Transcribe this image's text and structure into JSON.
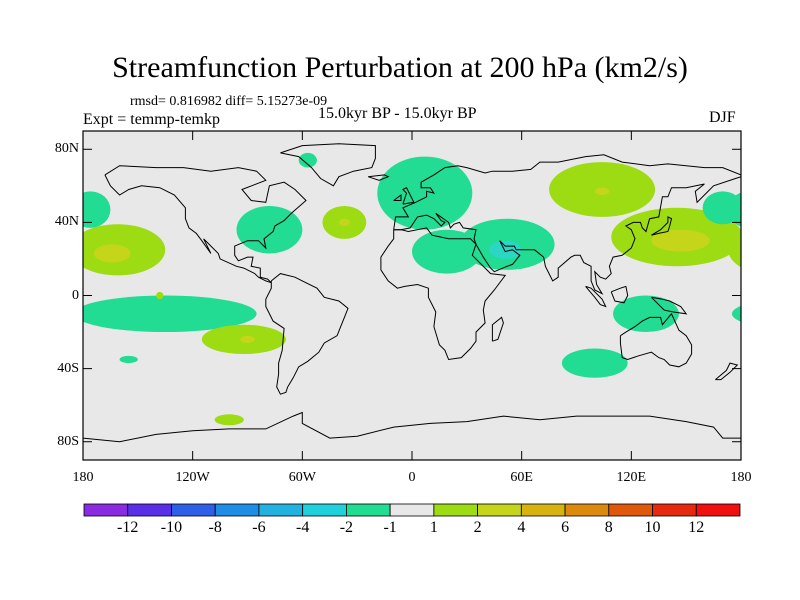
{
  "title": "Streamfunction Perturbation at 200 hPa (km2/s)",
  "stats": "rmsd= 0.816982 diff= 5.15273e-09",
  "experiment": "Expt = temmp-temkp",
  "period": "15.0kyr BP - 15.0kyr BP",
  "season": "DJF",
  "colors": {
    "background": "#e8e8e8",
    "neg_1": "#21dc92",
    "neg_2": "#2ad6c4",
    "pos_1": "#9ddb13",
    "pos_2": "#c5d51a",
    "pos_3": "#d7b310",
    "coast": "#000000"
  },
  "chart_data": {
    "type": "filled-contour-map",
    "projection": "cylindrical-equidistant",
    "lon_range": [
      -180,
      180
    ],
    "lat_range": [
      -90,
      90
    ],
    "y_ticks": [
      {
        "lat": 80,
        "label": "80N"
      },
      {
        "lat": 40,
        "label": "40N"
      },
      {
        "lat": 0,
        "label": "0"
      },
      {
        "lat": -40,
        "label": "40S"
      },
      {
        "lat": -80,
        "label": "80S"
      }
    ],
    "x_ticks": [
      {
        "lon": -180,
        "label": "180"
      },
      {
        "lon": -120,
        "label": "120W"
      },
      {
        "lon": -60,
        "label": "60W"
      },
      {
        "lon": 0,
        "label": "0"
      },
      {
        "lon": 60,
        "label": "60E"
      },
      {
        "lon": 120,
        "label": "120E"
      },
      {
        "lon": 180,
        "label": "180"
      }
    ],
    "colorbar": {
      "levels": [
        "-12",
        "-10",
        "-8",
        "-6",
        "-4",
        "-2",
        "-1",
        "1",
        "2",
        "4",
        "6",
        "8",
        "10",
        "12"
      ],
      "colors": [
        "#8a2be2",
        "#5a2fe8",
        "#2f5fe8",
        "#1f8de6",
        "#21b2e0",
        "#20d0da",
        "#21dc92",
        "#e8e8e8",
        "#9ddb13",
        "#c5d51a",
        "#d7b310",
        "#dc8a0c",
        "#e0580c",
        "#e62a10",
        "#f01010"
      ]
    },
    "regions": [
      {
        "name": "n-pacific-west-dipole-neg",
        "sign": "negative",
        "value": -1.5,
        "lon": -176,
        "lat": 47,
        "rlon": 11,
        "rlat": 10
      },
      {
        "name": "ne-pacific-pos",
        "sign": "positive",
        "value": 1.5,
        "lon": -161,
        "lat": 25,
        "rlon": 26,
        "rlat": 14
      },
      {
        "name": "ne-pacific-pos-core",
        "sign": "positive",
        "value": 2.5,
        "lon": -164,
        "lat": 23,
        "rlon": 10,
        "rlat": 5
      },
      {
        "name": "north-america-east-neg",
        "sign": "negative",
        "value": -1.5,
        "lon": -78,
        "lat": 36,
        "rlon": 18,
        "rlat": 13
      },
      {
        "name": "north-atlantic-pos",
        "sign": "positive",
        "value": 1.5,
        "lon": -37,
        "lat": 40,
        "rlon": 12,
        "rlat": 9
      },
      {
        "name": "north-atlantic-pos-core",
        "sign": "positive",
        "value": 2.5,
        "lon": -37,
        "lat": 40,
        "rlon": 3,
        "rlat": 2
      },
      {
        "name": "greenland-neg",
        "sign": "negative",
        "value": -1.5,
        "lon": -57,
        "lat": 74,
        "rlon": 5,
        "rlat": 4
      },
      {
        "name": "europe-neg",
        "sign": "negative",
        "value": -1.5,
        "lon": 7,
        "lat": 56,
        "rlon": 26,
        "rlat": 20
      },
      {
        "name": "middle-east-neg",
        "sign": "negative",
        "value": -1.5,
        "lon": 19,
        "lat": 24,
        "rlon": 19,
        "rlat": 12
      },
      {
        "name": "siberia-pos",
        "sign": "positive",
        "value": 1.5,
        "lon": 104,
        "lat": 58,
        "rlon": 29,
        "rlat": 15
      },
      {
        "name": "siberia-pos-core",
        "sign": "positive",
        "value": 2.5,
        "lon": 104,
        "lat": 57,
        "rlon": 4,
        "rlat": 2
      },
      {
        "name": "arabia-neg",
        "sign": "negative",
        "value": -1.5,
        "lon": 52,
        "lat": 28,
        "rlon": 26,
        "rlat": 14
      },
      {
        "name": "arabia-neg-core",
        "sign": "negative",
        "value": -2.5,
        "lon": 51,
        "lat": 25,
        "rlon": 9,
        "rlat": 5
      },
      {
        "name": "nw-pacific-pos",
        "sign": "positive",
        "value": 1.5,
        "lon": 145,
        "lat": 32,
        "rlon": 36,
        "rlat": 16
      },
      {
        "name": "nw-pacific-pos-core",
        "sign": "positive",
        "value": 2.5,
        "lon": 147,
        "lat": 30,
        "rlon": 16,
        "rlat": 6
      },
      {
        "name": "ne-pacific-east-neg",
        "sign": "negative",
        "value": -1.5,
        "lon": 170,
        "lat": 48,
        "rlon": 11,
        "rlat": 9
      },
      {
        "name": "indonesia-neg",
        "sign": "negative",
        "value": -1.5,
        "lon": 128,
        "lat": -10,
        "rlon": 18,
        "rlat": 10
      },
      {
        "name": "indian-ocean-neg",
        "sign": "negative",
        "value": -1.5,
        "lon": 100,
        "lat": -37,
        "rlon": 18,
        "rlat": 8
      },
      {
        "name": "sw-pacific-neg",
        "sign": "negative",
        "value": -1.5,
        "lon": -135,
        "lat": -10,
        "rlon": 50,
        "rlat": 10
      },
      {
        "name": "s-pacific-pos",
        "sign": "positive",
        "value": 1.5,
        "lon": -92,
        "lat": -24,
        "rlon": 23,
        "rlat": 8
      },
      {
        "name": "s-pacific-pos-core",
        "sign": "positive",
        "value": 2.5,
        "lon": -90,
        "lat": -24,
        "rlon": 4,
        "rlat": 2
      },
      {
        "name": "tropical-pacific-pos",
        "sign": "positive",
        "value": 1.5,
        "lon": -138,
        "lat": 0,
        "rlon": 2,
        "rlat": 2
      },
      {
        "name": "south-pacific-neg-small",
        "sign": "negative",
        "value": -1.5,
        "lon": -155,
        "lat": -35,
        "rlon": 5,
        "rlat": 2
      },
      {
        "name": "southern-ocean-pos",
        "sign": "positive",
        "value": 1.5,
        "lon": -100,
        "lat": -68,
        "rlon": 8,
        "rlat": 3
      }
    ]
  }
}
